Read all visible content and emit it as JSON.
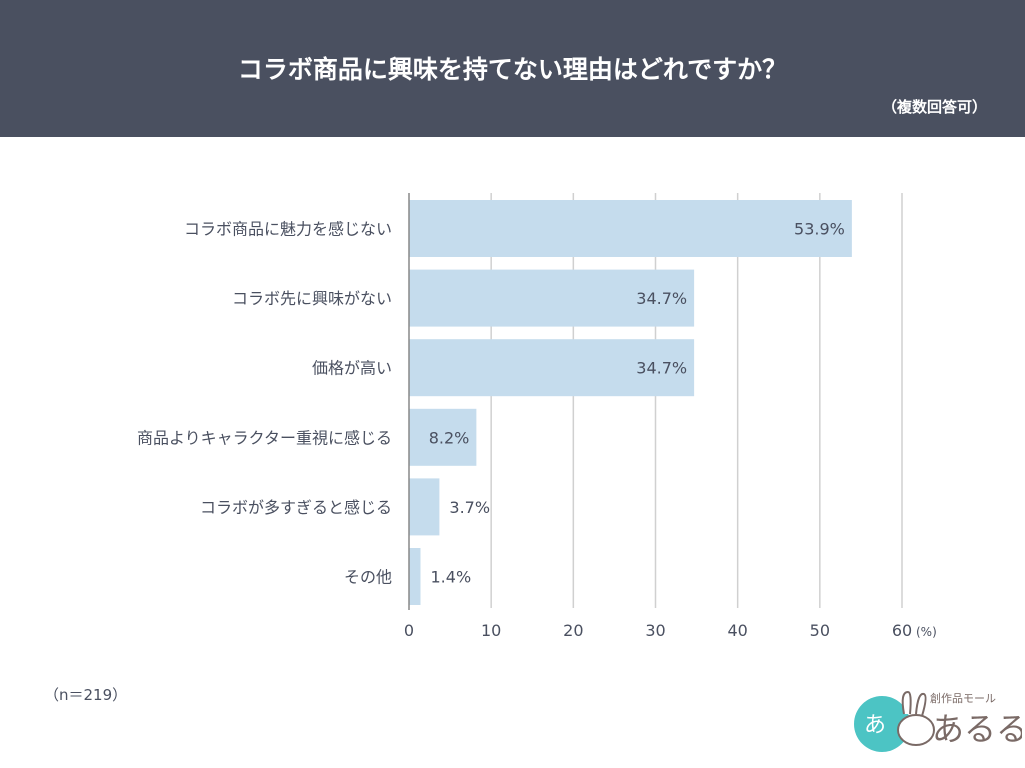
{
  "header": {
    "title": "コラボ商品に興味を持てない理由はどれですか？",
    "subtitle": "（複数回答可）"
  },
  "note": "（n＝219）",
  "logo": {
    "text": "創作品モール あるる"
  },
  "colors": {
    "header": "#4a5060",
    "bar": "#c5dced",
    "grid": "#d0d0d0"
  },
  "chart_data": {
    "type": "bar",
    "orientation": "horizontal",
    "categories": [
      "コラボ商品に魅力を感じない",
      "コラボ先に興味がない",
      "価格が高い",
      "商品よりキャラクター重視に感じる",
      "コラボが多すぎると感じる",
      "その他"
    ],
    "values": [
      53.9,
      34.7,
      34.7,
      8.2,
      3.7,
      1.4
    ],
    "value_labels": [
      "53.9%",
      "34.7%",
      "34.7%",
      "8.2%",
      "3.7%",
      "1.4%"
    ],
    "xlim": [
      0,
      60
    ],
    "xticks": [
      "0",
      "10",
      "20",
      "30",
      "40",
      "50",
      "60"
    ],
    "xunit": "(%)",
    "grid": true
  }
}
